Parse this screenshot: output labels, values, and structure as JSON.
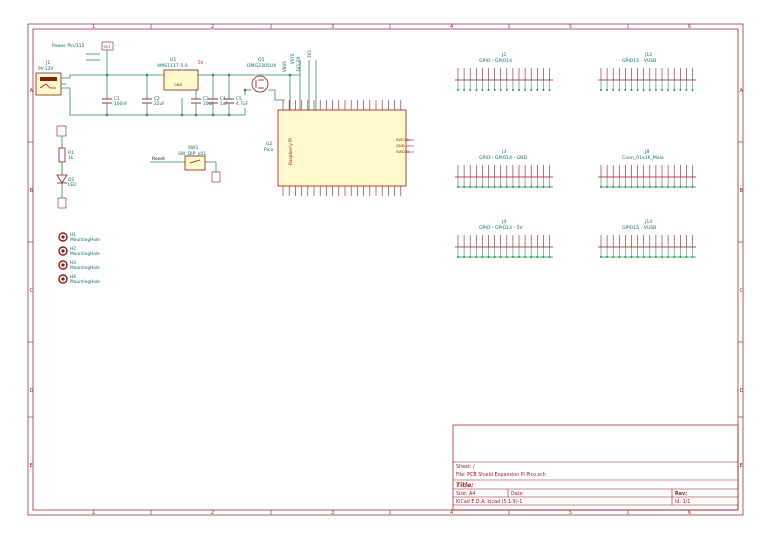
{
  "frame": {
    "col_numbers": [
      "1",
      "2",
      "3",
      "4",
      "5",
      "6"
    ],
    "row_letters": [
      "A",
      "B",
      "C",
      "D",
      "E"
    ]
  },
  "colors": {
    "border": "#8b1a1a",
    "wire": "#2e8b57",
    "text": "#0e6a6a",
    "body_fill": "#fffbcc",
    "junction": "#2e8b57",
    "label": "#8b1a1a"
  },
  "power_input": {
    "label": "Power Pin/115",
    "tag": "5V1"
  },
  "jack": {
    "ref": "J1",
    "value": "9V-12V"
  },
  "regulator": {
    "ref": "U1",
    "value": "AMS1117-5.0",
    "pin": "GND"
  },
  "mosfet": {
    "ref": "Q1",
    "value": "DMG2305UX"
  },
  "caps": [
    {
      "ref": "C1",
      "value": "100nF"
    },
    {
      "ref": "C2",
      "value": "22uF"
    },
    {
      "ref": "C3",
      "value": "10uF"
    },
    {
      "ref": "C4",
      "value": "1uF"
    },
    {
      "ref": "C5",
      "value": "4.7uF"
    }
  ],
  "supply_labels": [
    "5V",
    "VBUS",
    "VSYS",
    "3V3_EN",
    "3V3"
  ],
  "switch": {
    "ref": "SW1",
    "value": "SW_DIP_x01",
    "net": "Reset"
  },
  "led_block": {
    "resistor": {
      "ref": "R1",
      "value": "1k"
    },
    "led": {
      "ref": "D1",
      "value": "LED"
    }
  },
  "holes": [
    {
      "ref": "H1",
      "value": "MountingHole"
    },
    {
      "ref": "H2",
      "value": "MountingHole"
    },
    {
      "ref": "H3",
      "value": "MountingHole"
    },
    {
      "ref": "H4",
      "value": "MountingHole"
    }
  ],
  "pico": {
    "ref": "U2",
    "value": "Pico",
    "body_text": "Raspberry Pi",
    "right_labels": [
      "SWCLK",
      "GND",
      "SWDIO"
    ]
  },
  "connectors": [
    {
      "ref": "J2",
      "value": "GPIO - GPIO14"
    },
    {
      "ref": "J3",
      "value": "GPIO - GPIO14 - GND"
    },
    {
      "ref": "J4",
      "value": "GPIO - GPIO14 - 5V"
    },
    {
      "ref": "J12",
      "value": "GPIO15 - VUSB"
    },
    {
      "ref": "J8",
      "value": "Conn_01x16_Male"
    },
    {
      "ref": "J14",
      "value": "GPIO15 - VUSB"
    }
  ],
  "title_block": {
    "sheet": "Sheet: /",
    "file": "File: PCB Shield Expansion Pi Pico.sch",
    "title": "Title:",
    "size": "Size: A4",
    "date": "Date:",
    "rev": "Rev:",
    "kicad": "KiCad E.D.A.  kicad (5.1.9)-1",
    "id": "Id: 1/1"
  }
}
